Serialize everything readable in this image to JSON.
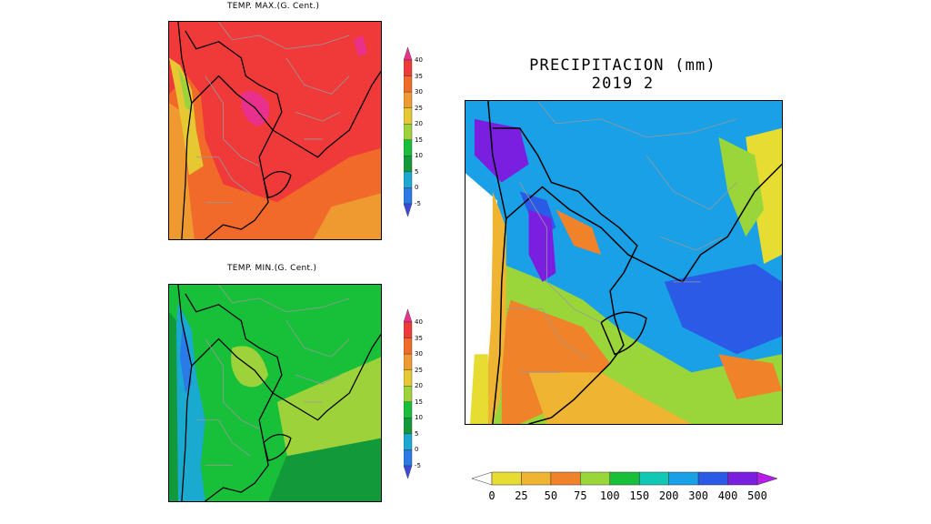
{
  "titles": {
    "tmax": "TEMP. MAX.(G. Cent.)",
    "tmin": "TEMP. MIN.(G. Cent.)",
    "precip_line1": "PRECIPITACION (mm)",
    "precip_line2": "2019  2"
  },
  "temp_scale": {
    "ticks": [
      "40",
      "35",
      "30",
      "25",
      "20",
      "15",
      "10",
      "5",
      "0",
      "-5"
    ],
    "colors": [
      "#e8308c",
      "#f03a3a",
      "#f26a2a",
      "#ee9a30",
      "#e6c832",
      "#9ed23a",
      "#18c03a",
      "#129a3a",
      "#1aaad0",
      "#2a7ae8",
      "#3a4ad8"
    ]
  },
  "precip_scale": {
    "ticks": [
      "0",
      "25",
      "50",
      "75",
      "100",
      "150",
      "200",
      "300",
      "400",
      "500"
    ],
    "colors": [
      "#ffffff",
      "#e6dc32",
      "#eeb432",
      "#f0822a",
      "#9ad63a",
      "#18c03a",
      "#10c8b4",
      "#1aa0e6",
      "#2a5ae6",
      "#7a1ee0",
      "#b41ee8"
    ]
  }
}
